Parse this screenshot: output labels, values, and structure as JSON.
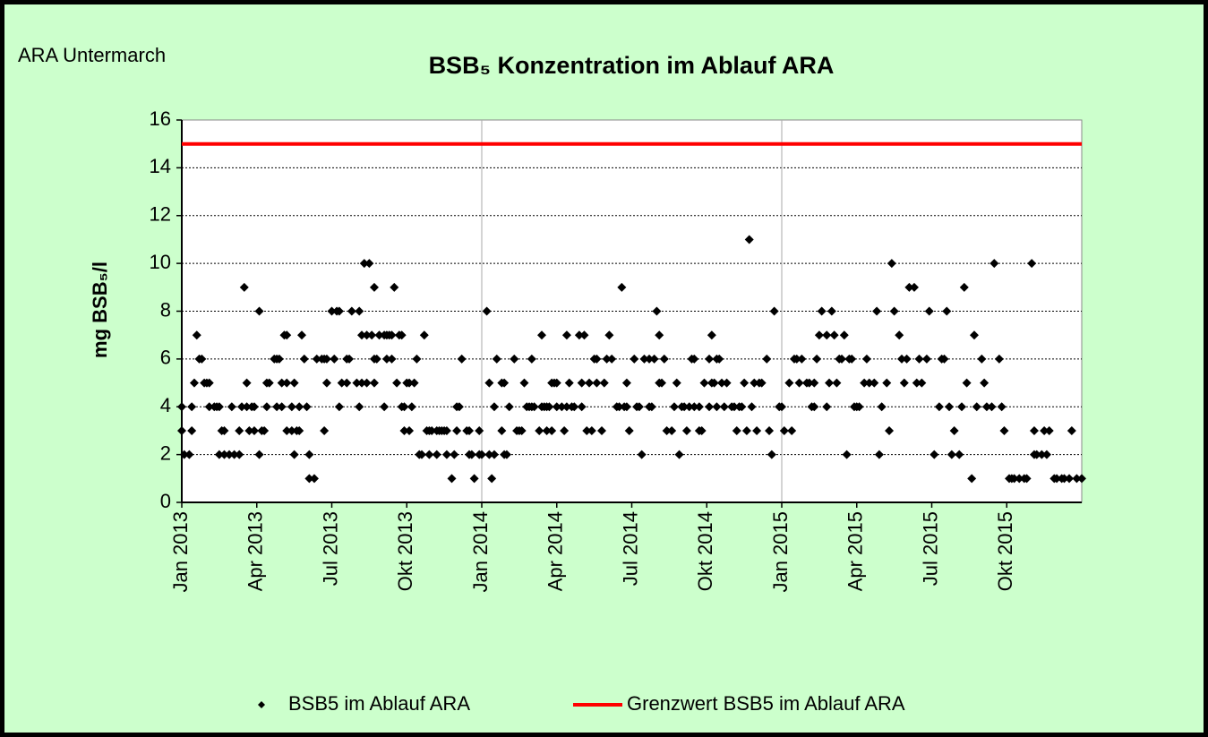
{
  "chart_data": {
    "type": "scatter",
    "note": "ARA Untermarch",
    "title": "BSB₅ Konzentration im Ablauf ARA",
    "y_label": "mg BSB₅/l",
    "xlim": [
      0,
      36
    ],
    "xticks": [
      {
        "value": 0,
        "label": "Jan 2013"
      },
      {
        "value": 3,
        "label": "Apr 2013"
      },
      {
        "value": 6,
        "label": "Jul 2013"
      },
      {
        "value": 9,
        "label": "Okt 2013"
      },
      {
        "value": 12,
        "label": "Jan 2014"
      },
      {
        "value": 15,
        "label": "Apr 2014"
      },
      {
        "value": 18,
        "label": "Jul 2014"
      },
      {
        "value": 21,
        "label": "Okt 2014"
      },
      {
        "value": 24,
        "label": "Jan 2015"
      },
      {
        "value": 27,
        "label": "Apr 2015"
      },
      {
        "value": 30,
        "label": "Jul 2015"
      },
      {
        "value": 33,
        "label": "Okt 2015"
      }
    ],
    "xgrid_step": 12,
    "ylim": [
      0,
      16
    ],
    "yticks": [
      0,
      2,
      4,
      6,
      8,
      10,
      12,
      14,
      16
    ],
    "grid": true,
    "legend": "bottom",
    "series": [
      {
        "name": "BSB5 im Ablauf ARA",
        "color": "#000000",
        "marker": "diamond",
        "x": [
          0,
          0,
          0.1,
          0.3,
          0.4,
          0.4,
          0.5,
          0.6,
          0.7,
          0.8,
          0.9,
          1.0,
          1.1,
          1.1,
          1.3,
          1.4,
          1.5,
          1.5,
          1.6,
          1.7,
          1.7,
          1.9,
          2.0,
          2.1,
          2.3,
          2.3,
          2.4,
          2.5,
          2.6,
          2.6,
          2.7,
          2.8,
          2.9,
          2.9,
          3.1,
          3.1,
          3.2,
          3.3,
          3.4,
          3.4,
          3.5,
          3.7,
          3.8,
          3.8,
          3.9,
          4.0,
          4.0,
          4.1,
          4.2,
          4.2,
          4.2,
          4.4,
          4.4,
          4.5,
          4.5,
          4.6,
          4.7,
          4.7,
          4.8,
          4.9,
          5.0,
          5.1,
          5.1,
          5.3,
          5.4,
          5.6,
          5.7,
          5.7,
          5.8,
          5.8,
          6.0,
          6.1,
          6.2,
          6.3,
          6.3,
          6.4,
          6.6,
          6.6,
          6.7,
          6.8,
          7.0,
          7.1,
          7.1,
          7.2,
          7.2,
          7.3,
          7.4,
          7.4,
          7.5,
          7.6,
          7.7,
          7.7,
          7.7,
          7.8,
          7.9,
          8.1,
          8.1,
          8.2,
          8.2,
          8.3,
          8.4,
          8.4,
          8.5,
          8.6,
          8.7,
          8.8,
          8.8,
          8.9,
          8.9,
          9.0,
          9.1,
          9.1,
          9.2,
          9.3,
          9.4,
          9.5,
          9.6,
          9.7,
          9.8,
          9.9,
          9.9,
          10.0,
          10.2,
          10.2,
          10.3,
          10.4,
          10.5,
          10.6,
          10.6,
          10.8,
          10.9,
          11.0,
          11.0,
          11.1,
          11.2,
          11.4,
          11.5,
          11.5,
          11.6,
          11.7,
          11.9,
          11.9,
          12.0,
          12.2,
          12.3,
          12.3,
          12.4,
          12.5,
          12.5,
          12.6,
          12.8,
          12.8,
          12.9,
          12.9,
          13.0,
          13.1,
          13.3,
          13.4,
          13.5,
          13.6,
          13.7,
          13.8,
          13.9,
          14.0,
          14.0,
          14.1,
          14.3,
          14.4,
          14.4,
          14.5,
          14.6,
          14.6,
          14.7,
          14.8,
          14.8,
          14.9,
          15.0,
          15.0,
          15.2,
          15.3,
          15.4,
          15.4,
          15.5,
          15.6,
          15.7,
          15.9,
          16.0,
          16.0,
          16.1,
          16.2,
          16.3,
          16.4,
          16.5,
          16.6,
          16.6,
          16.8,
          16.9,
          17.0,
          17.1,
          17.2,
          17.4,
          17.5,
          17.6,
          17.7,
          17.8,
          17.8,
          17.9,
          18.1,
          18.2,
          18.3,
          18.4,
          18.5,
          18.7,
          18.7,
          18.8,
          18.9,
          19.0,
          19.1,
          19.1,
          19.2,
          19.3,
          19.4,
          19.6,
          19.7,
          19.8,
          19.9,
          20.0,
          20.1,
          20.2,
          20.3,
          20.4,
          20.5,
          20.5,
          20.7,
          20.7,
          20.8,
          20.9,
          21.1,
          21.1,
          21.2,
          21.2,
          21.3,
          21.4,
          21.4,
          21.5,
          21.6,
          21.7,
          21.8,
          22.0,
          22.1,
          22.2,
          22.3,
          22.4,
          22.5,
          22.6,
          22.7,
          22.8,
          22.9,
          23.0,
          23.1,
          23.2,
          23.4,
          23.5,
          23.6,
          23.7,
          23.9,
          24.0,
          24.1,
          24.3,
          24.4,
          24.5,
          24.6,
          24.7,
          24.8,
          25.0,
          25.1,
          25.2,
          25.3,
          25.3,
          25.4,
          25.5,
          25.6,
          25.8,
          25.8,
          25.9,
          26.0,
          26.1,
          26.2,
          26.3,
          26.4,
          26.5,
          26.6,
          26.7,
          26.8,
          26.9,
          27.0,
          27.1,
          27.3,
          27.4,
          27.5,
          27.7,
          27.8,
          27.9,
          28.0,
          28.2,
          28.3,
          28.4,
          28.5,
          28.7,
          28.8,
          28.9,
          29.0,
          29.1,
          29.3,
          29.4,
          29.5,
          29.6,
          29.8,
          29.9,
          30.1,
          30.3,
          30.4,
          30.5,
          30.6,
          30.7,
          30.8,
          30.9,
          31.1,
          31.2,
          31.3,
          31.4,
          31.6,
          31.7,
          31.8,
          32.0,
          32.1,
          32.2,
          32.4,
          32.5,
          32.7,
          32.8,
          32.9,
          33.1,
          33.2,
          33.3,
          33.5,
          33.7,
          33.8,
          34.0,
          34.1,
          34.1,
          34.2,
          34.4,
          34.5,
          34.6,
          34.7,
          34.9,
          35.0,
          35.2,
          35.3,
          35.5,
          35.6,
          35.8,
          36.0
        ],
        "values": [
          4,
          3,
          2,
          2,
          3,
          4,
          5,
          7,
          6,
          6,
          5,
          5,
          4,
          5,
          4,
          4,
          2,
          4,
          3,
          3,
          2,
          2,
          4,
          2,
          2,
          3,
          4,
          9,
          5,
          4,
          3,
          4,
          4,
          3,
          2,
          8,
          3,
          3,
          4,
          5,
          5,
          6,
          4,
          6,
          6,
          4,
          5,
          7,
          7,
          5,
          3,
          4,
          3,
          5,
          2,
          3,
          3,
          4,
          7,
          6,
          4,
          1,
          2,
          1,
          6,
          6,
          6,
          3,
          5,
          6,
          8,
          6,
          8,
          8,
          4,
          5,
          6,
          5,
          6,
          8,
          5,
          8,
          4,
          7,
          5,
          10,
          7,
          5,
          10,
          7,
          9,
          6,
          5,
          6,
          7,
          4,
          7,
          7,
          6,
          7,
          7,
          6,
          9,
          5,
          7,
          4,
          7,
          4,
          3,
          5,
          3,
          5,
          4,
          5,
          6,
          2,
          2,
          7,
          3,
          3,
          2,
          3,
          2,
          3,
          3,
          3,
          3,
          3,
          2,
          1,
          2,
          3,
          4,
          4,
          6,
          3,
          2,
          3,
          2,
          1,
          2,
          3,
          2,
          8,
          2,
          5,
          1,
          4,
          2,
          6,
          3,
          5,
          5,
          2,
          2,
          4,
          6,
          3,
          3,
          3,
          5,
          4,
          4,
          6,
          4,
          4,
          3,
          4,
          7,
          4,
          3,
          4,
          4,
          5,
          3,
          5,
          5,
          4,
          4,
          3,
          4,
          7,
          5,
          4,
          4,
          7,
          4,
          5,
          7,
          3,
          5,
          3,
          6,
          6,
          5,
          3,
          5,
          6,
          7,
          6,
          4,
          4,
          9,
          4,
          5,
          4,
          3,
          6,
          4,
          4,
          2,
          6,
          6,
          4,
          4,
          6,
          8,
          5,
          7,
          5,
          6,
          3,
          3,
          4,
          5,
          2,
          4,
          4,
          3,
          4,
          6,
          6,
          4,
          3,
          4,
          3,
          5,
          4,
          6,
          7,
          5,
          5,
          4,
          6,
          6,
          5,
          4,
          5,
          4,
          4,
          3,
          4,
          4,
          5,
          3,
          11,
          4,
          5,
          3,
          5,
          5,
          6,
          3,
          2,
          8,
          4,
          4,
          3,
          5,
          3,
          6,
          6,
          5,
          6,
          5,
          5,
          4,
          4,
          5,
          6,
          7,
          8,
          7,
          4,
          5,
          8,
          7,
          5,
          6,
          6,
          7,
          2,
          6,
          6,
          4,
          4,
          4,
          5,
          6,
          5,
          5,
          8,
          2,
          4,
          5,
          3,
          10,
          8,
          7,
          6,
          5,
          6,
          9,
          9,
          5,
          6,
          5,
          6,
          8,
          2,
          4,
          6,
          6,
          8,
          4,
          2,
          3,
          2,
          4,
          9,
          5,
          1,
          7,
          4,
          6,
          5,
          4,
          4,
          10,
          6,
          4,
          3,
          1,
          1,
          1,
          1,
          1,
          1,
          10,
          2,
          3,
          2,
          2,
          3,
          2,
          3,
          1,
          1,
          1,
          1,
          1,
          3,
          1,
          1
        ]
      },
      {
        "name": "Grenzwert BSB5 im Ablauf ARA",
        "color": "#ff0000",
        "marker": "line",
        "x": [
          0,
          36
        ],
        "values": [
          15,
          15
        ]
      }
    ]
  }
}
